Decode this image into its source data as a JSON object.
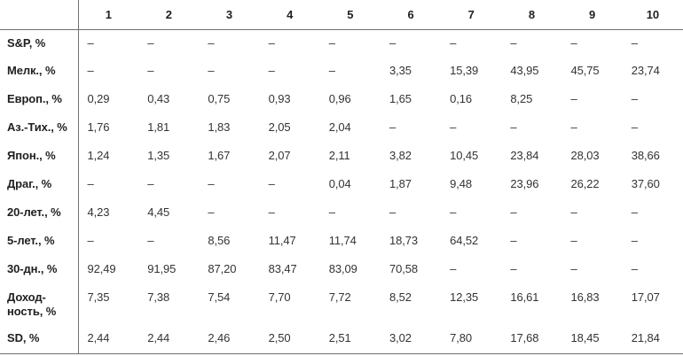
{
  "page": {
    "background_color": "#ffffff",
    "text_color": "#2b2b2b",
    "rule_color": "#6f6f6f"
  },
  "table": {
    "corner_label": "",
    "missing_value_symbol": "–",
    "columns": [
      "1",
      "2",
      "3",
      "4",
      "5",
      "6",
      "7",
      "8",
      "9",
      "10"
    ],
    "rows": [
      {
        "label": "S&P, %",
        "values": [
          "–",
          "–",
          "–",
          "–",
          "–",
          "–",
          "–",
          "–",
          "–",
          "–"
        ]
      },
      {
        "label": "Мелк., %",
        "values": [
          "–",
          "–",
          "–",
          "–",
          "–",
          "3,35",
          "15,39",
          "43,95",
          "45,75",
          "23,74"
        ]
      },
      {
        "label": "Европ., %",
        "values": [
          "0,29",
          "0,43",
          "0,75",
          "0,93",
          "0,96",
          "1,65",
          "0,16",
          "8,25",
          "–",
          "–"
        ]
      },
      {
        "label": "Аз.-Тих., %",
        "values": [
          "1,76",
          "1,81",
          "1,83",
          "2,05",
          "2,04",
          "–",
          "–",
          "–",
          "–",
          "–"
        ]
      },
      {
        "label": "Япон., %",
        "values": [
          "1,24",
          "1,35",
          "1,67",
          "2,07",
          "2,11",
          "3,82",
          "10,45",
          "23,84",
          "28,03",
          "38,66"
        ]
      },
      {
        "label": "Драг., %",
        "values": [
          "–",
          "–",
          "–",
          "–",
          "0,04",
          "1,87",
          "9,48",
          "23,96",
          "26,22",
          "37,60"
        ]
      },
      {
        "label": "20-лет., %",
        "values": [
          "4,23",
          "4,45",
          "–",
          "–",
          "–",
          "–",
          "–",
          "–",
          "–",
          "–"
        ]
      },
      {
        "label": "5-лет., %",
        "values": [
          "–",
          "–",
          "8,56",
          "11,47",
          "11,74",
          "18,73",
          "64,52",
          "–",
          "–",
          "–"
        ]
      },
      {
        "label": "30-дн., %",
        "values": [
          "92,49",
          "91,95",
          "87,20",
          "83,47",
          "83,09",
          "70,58",
          "–",
          "–",
          "–",
          "–"
        ]
      },
      {
        "label": "Доход-\nность, %",
        "values": [
          "7,35",
          "7,38",
          "7,54",
          "7,70",
          "7,72",
          "8,52",
          "12,35",
          "16,61",
          "16,83",
          "17,07"
        ]
      },
      {
        "label": "SD, %",
        "values": [
          "2,44",
          "2,44",
          "2,46",
          "2,50",
          "2,51",
          "3,02",
          "7,80",
          "17,68",
          "18,45",
          "21,84"
        ]
      }
    ]
  }
}
